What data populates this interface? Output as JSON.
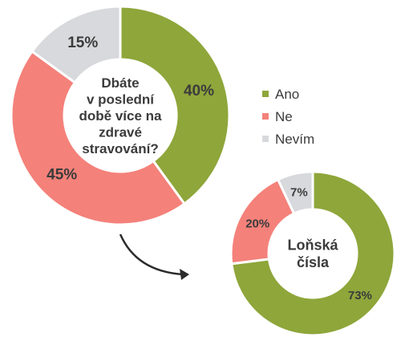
{
  "chart_data": [
    {
      "type": "pie",
      "title": "",
      "center_label": [
        "Dbáte",
        "v poslední",
        "době více na",
        "zdravé",
        "stravování?"
      ],
      "categories": [
        "Ano",
        "Ne",
        "Nevím"
      ],
      "values": [
        40,
        45,
        15
      ],
      "labels": [
        "40%",
        "45%",
        "15%"
      ],
      "colors": [
        "#8ea63a",
        "#f4817a",
        "#d8d9dc"
      ],
      "legend_position": "right"
    },
    {
      "type": "pie",
      "title": "",
      "center_label": [
        "Loňská",
        "čísla"
      ],
      "categories": [
        "Ano",
        "Ne",
        "Nevím"
      ],
      "values": [
        73,
        20,
        7
      ],
      "labels": [
        "73%",
        "20%",
        "7%"
      ],
      "colors": [
        "#8ea63a",
        "#f4817a",
        "#d8d9dc"
      ]
    }
  ],
  "legend": [
    {
      "label": "Ano",
      "color": "#8ea63a"
    },
    {
      "label": "Ne",
      "color": "#f4817a"
    },
    {
      "label": "Nevím",
      "color": "#d8d9dc"
    }
  ]
}
